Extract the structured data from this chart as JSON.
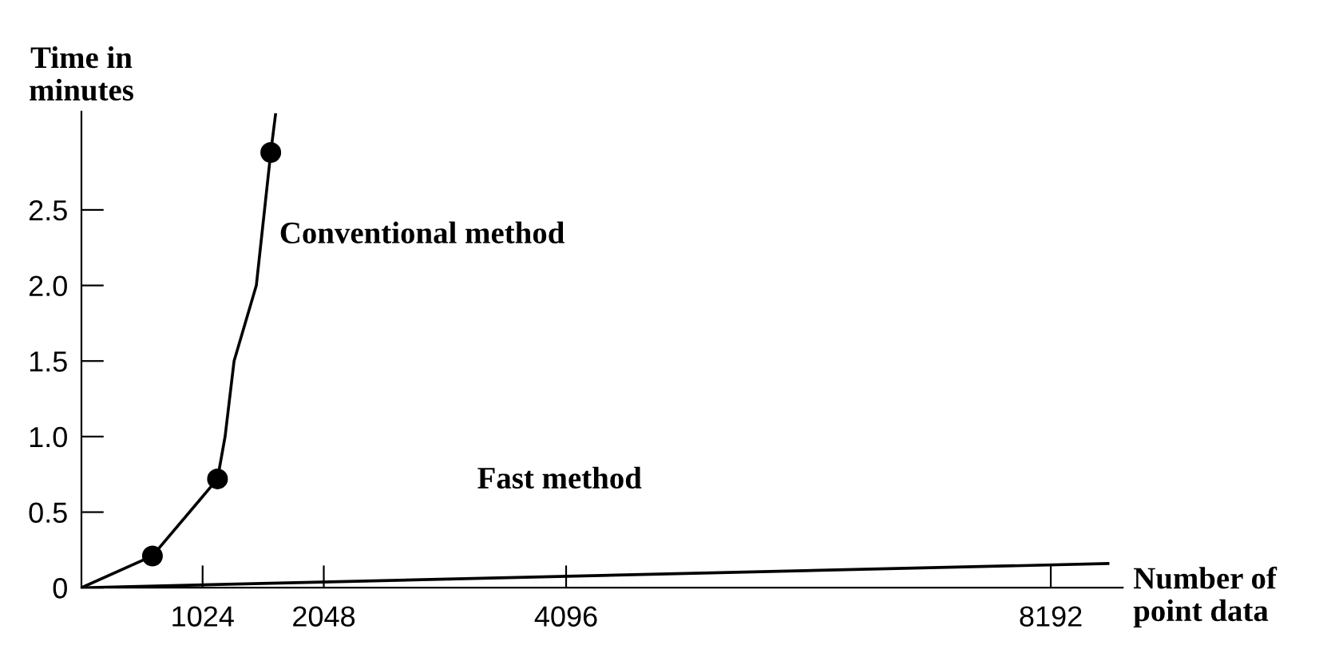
{
  "chart_data": {
    "type": "line",
    "xlabel": "Number of\npoint data",
    "ylabel": "Time in\nminutes",
    "xlim": [
      0,
      8800
    ],
    "ylim": [
      0,
      3.15
    ],
    "xticks": [
      1024,
      2048,
      4096,
      8192
    ],
    "yticks": [
      0,
      0.5,
      {
        "value": 1,
        "label": "1.0"
      },
      1.5,
      {
        "value": 2,
        "label": "2.0"
      },
      2.5
    ],
    "grid": false,
    "legend": false,
    "series": [
      {
        "name": "Conventional method",
        "marker": "none",
        "color": "#000000",
        "x": [
          0,
          600,
          1150,
          1214,
          1290,
          1478,
          1600,
          1640
        ],
        "values": [
          0,
          0.21,
          0.72,
          1.0,
          1.5,
          2.0,
          2.88,
          3.13
        ]
      },
      {
        "type": "scatter",
        "marker": "circle",
        "color": "#000000",
        "x": [
          600,
          1150,
          1600
        ],
        "values": [
          0.21,
          0.72,
          2.88
        ]
      },
      {
        "name": "Fast method",
        "marker": "none",
        "color": "#000000",
        "x": [
          0,
          8675
        ],
        "values": [
          0,
          0.16
        ]
      }
    ]
  }
}
